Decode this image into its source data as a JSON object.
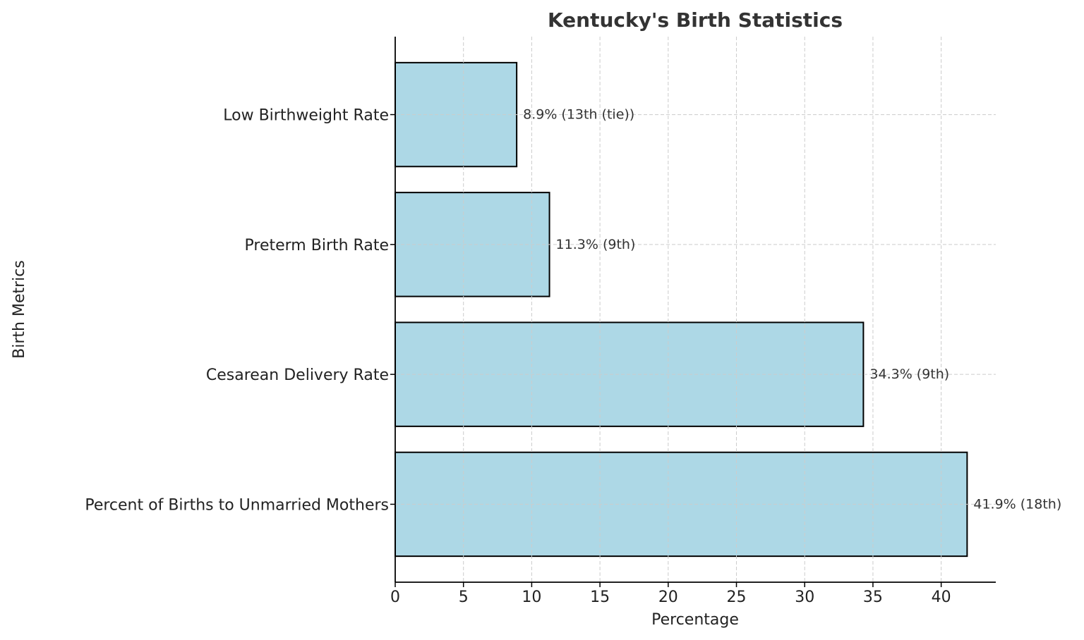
{
  "chart_data": {
    "type": "bar",
    "orientation": "horizontal",
    "title": "Kentucky's Birth Statistics",
    "xlabel": "Percentage",
    "ylabel": "Birth Metrics",
    "categories": [
      "Percent of Births to Unmarried Mothers",
      "Cesarean Delivery Rate",
      "Preterm Birth Rate",
      "Low Birthweight Rate"
    ],
    "values": [
      41.9,
      34.3,
      11.3,
      8.9
    ],
    "data_labels": [
      "41.9% (18th)",
      "34.3% (9th)",
      "11.3% (9th)",
      "8.9% (13th (tie))"
    ],
    "xticks": [
      0,
      5,
      10,
      15,
      20,
      25,
      30,
      35,
      40
    ],
    "xlim": [
      0,
      44
    ],
    "grid": true,
    "bar_color": "#add8e6",
    "edge_color": "#000000"
  }
}
